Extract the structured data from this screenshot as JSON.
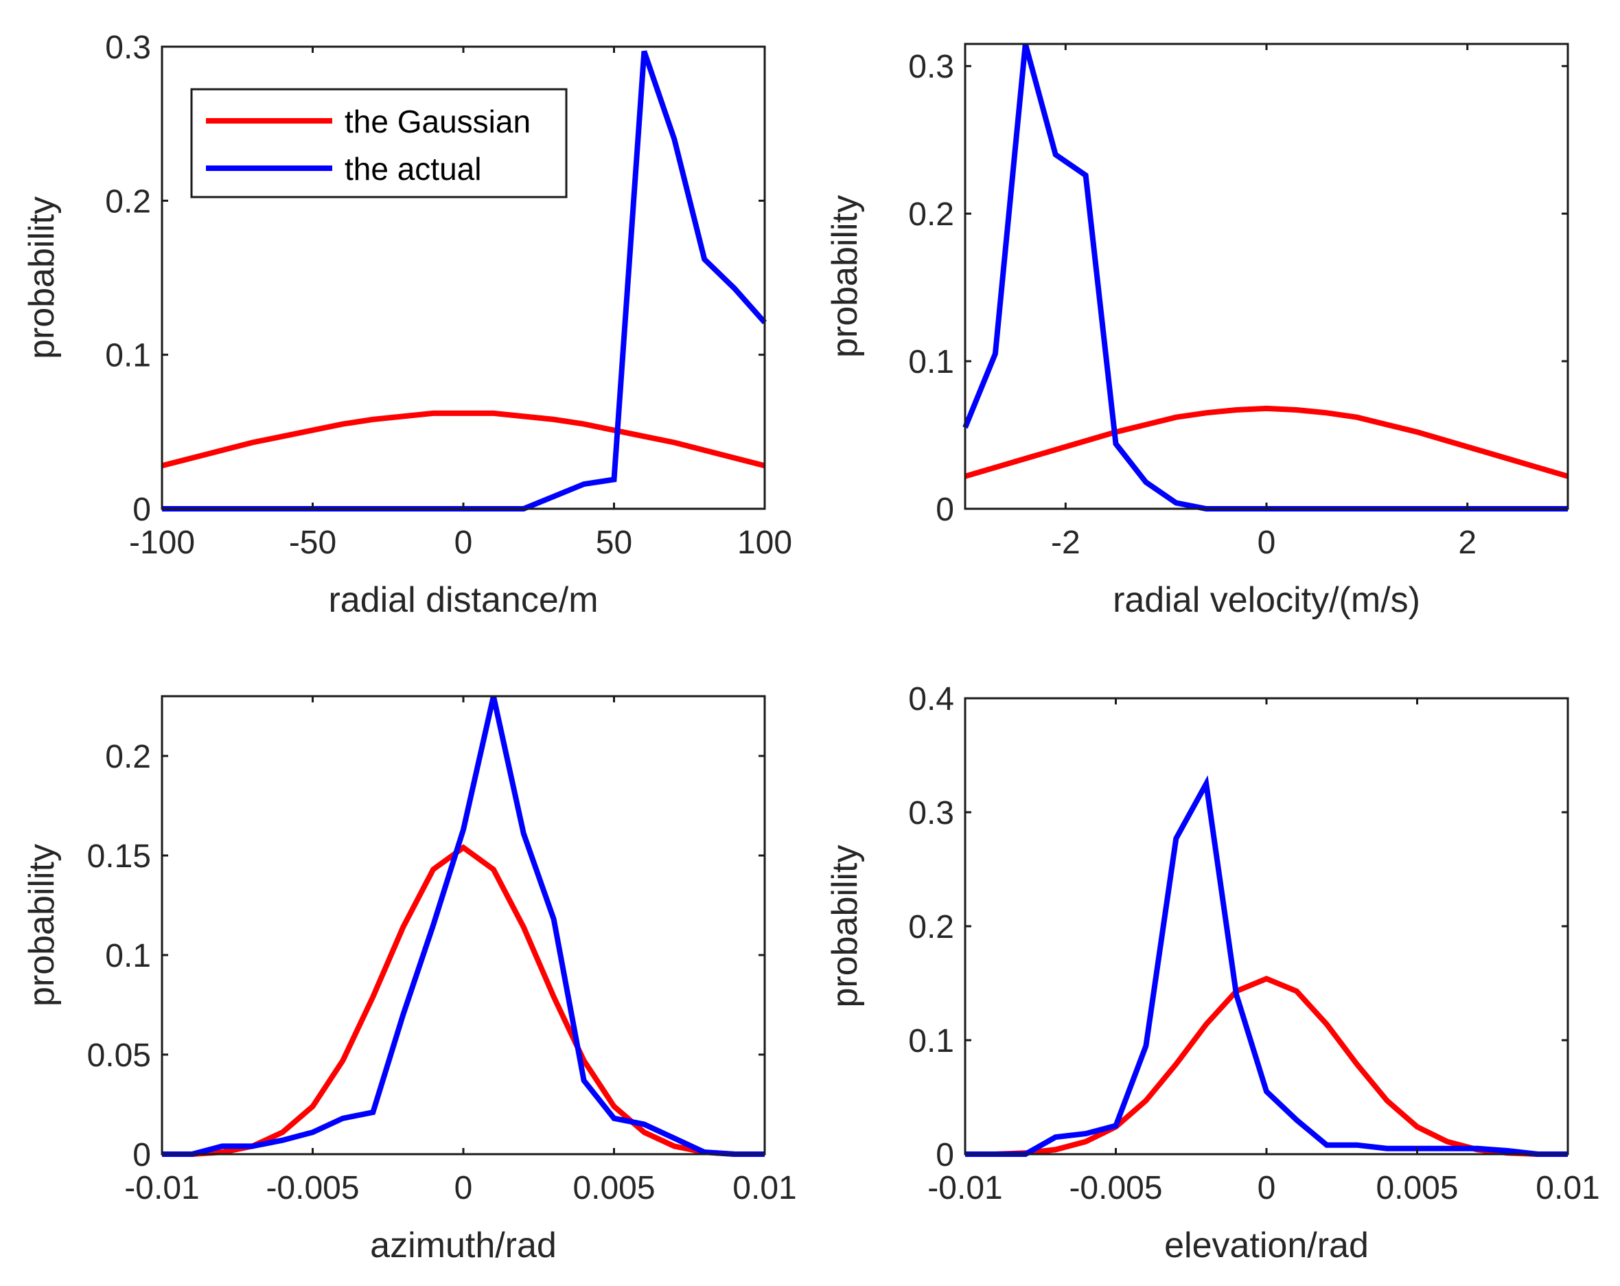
{
  "legend": {
    "entries": [
      {
        "label": "the Gaussian",
        "color": "#ff0000"
      },
      {
        "label": "the actual",
        "color": "#0000ff"
      }
    ],
    "placement": "top-left of first panel"
  },
  "chart_data": [
    {
      "type": "line",
      "xlabel": "radial distance/m",
      "ylabel": "probability",
      "xlim": [
        -100,
        100
      ],
      "ylim": [
        0,
        0.3
      ],
      "xticks": [
        -100,
        -50,
        0,
        50,
        100
      ],
      "xtick_labels": [
        "-100",
        "-50",
        "0",
        "50",
        "100"
      ],
      "yticks": [
        0,
        0.1,
        0.2,
        0.3
      ],
      "ytick_labels": [
        "0",
        "0.1",
        "0.2",
        "0.3"
      ],
      "grid": false,
      "series": [
        {
          "name": "the Gaussian",
          "color": "#ff0000",
          "x": [
            -100,
            -90,
            -80,
            -70,
            -60,
            -50,
            -40,
            -30,
            -20,
            -10,
            0,
            10,
            20,
            30,
            40,
            50,
            60,
            70,
            80,
            90,
            100
          ],
          "y": [
            0.028,
            0.033,
            0.038,
            0.043,
            0.047,
            0.051,
            0.055,
            0.058,
            0.06,
            0.062,
            0.062,
            0.062,
            0.06,
            0.058,
            0.055,
            0.051,
            0.047,
            0.043,
            0.038,
            0.033,
            0.028
          ]
        },
        {
          "name": "the actual",
          "color": "#0000ff",
          "x": [
            -100,
            -80,
            -60,
            -40,
            -20,
            0,
            20,
            30,
            40,
            50,
            60,
            70,
            80,
            90,
            100
          ],
          "y": [
            0,
            0,
            0,
            0,
            0,
            0,
            0,
            0.008,
            0.016,
            0.019,
            0.297,
            0.24,
            0.162,
            0.143,
            0.121
          ]
        }
      ]
    },
    {
      "type": "line",
      "xlabel": "radial velocity/(m/s)",
      "ylabel": "probability",
      "xlim": [
        -3,
        3
      ],
      "ylim": [
        0,
        0.315
      ],
      "xticks": [
        -2,
        0,
        2
      ],
      "xtick_labels": [
        "-2",
        "0",
        "2"
      ],
      "yticks": [
        0,
        0.1,
        0.2,
        0.3
      ],
      "ytick_labels": [
        "0",
        "0.1",
        "0.2",
        "0.3"
      ],
      "grid": false,
      "series": [
        {
          "name": "the Gaussian",
          "color": "#ff0000",
          "x": [
            -3,
            -2.7,
            -2.4,
            -2.1,
            -1.8,
            -1.5,
            -1.2,
            -0.9,
            -0.6,
            -0.3,
            0,
            0.3,
            0.6,
            0.9,
            1.2,
            1.5,
            1.8,
            2.1,
            2.4,
            2.7,
            3
          ],
          "y": [
            0.022,
            0.028,
            0.034,
            0.04,
            0.046,
            0.052,
            0.057,
            0.062,
            0.065,
            0.067,
            0.068,
            0.067,
            0.065,
            0.062,
            0.057,
            0.052,
            0.046,
            0.04,
            0.034,
            0.028,
            0.022
          ]
        },
        {
          "name": "the actual",
          "color": "#0000ff",
          "x": [
            -3,
            -2.7,
            -2.4,
            -2.1,
            -1.8,
            -1.5,
            -1.2,
            -0.9,
            -0.6,
            0,
            1,
            2,
            3
          ],
          "y": [
            0.055,
            0.105,
            0.315,
            0.24,
            0.226,
            0.044,
            0.018,
            0.004,
            0,
            0,
            0,
            0,
            0
          ]
        }
      ]
    },
    {
      "type": "line",
      "xlabel": "azimuth/rad",
      "ylabel": "probability",
      "xlim": [
        -0.01,
        0.01
      ],
      "ylim": [
        0,
        0.23
      ],
      "xticks": [
        -0.01,
        -0.005,
        0,
        0.005,
        0.01
      ],
      "xtick_labels": [
        "-0.01",
        "-0.005",
        "0",
        "0.005",
        "0.01"
      ],
      "yticks": [
        0,
        0.05,
        0.1,
        0.15,
        0.2
      ],
      "ytick_labels": [
        "0",
        "0.05",
        "0.1",
        "0.15",
        "0.2"
      ],
      "grid": false,
      "series": [
        {
          "name": "the Gaussian",
          "color": "#ff0000",
          "x": [
            -0.01,
            -0.009,
            -0.008,
            -0.007,
            -0.006,
            -0.005,
            -0.004,
            -0.003,
            -0.002,
            -0.001,
            0,
            0.001,
            0.002,
            0.003,
            0.004,
            0.005,
            0.006,
            0.007,
            0.008,
            0.009,
            0.01
          ],
          "y": [
            0,
            0,
            0.001,
            0.004,
            0.011,
            0.024,
            0.047,
            0.079,
            0.114,
            0.143,
            0.154,
            0.143,
            0.114,
            0.079,
            0.047,
            0.024,
            0.011,
            0.004,
            0.001,
            0,
            0
          ]
        },
        {
          "name": "the actual",
          "color": "#0000ff",
          "x": [
            -0.01,
            -0.009,
            -0.008,
            -0.007,
            -0.006,
            -0.005,
            -0.004,
            -0.003,
            -0.002,
            -0.001,
            0,
            0.001,
            0.002,
            0.003,
            0.004,
            0.005,
            0.006,
            0.007,
            0.008,
            0.009,
            0.01
          ],
          "y": [
            0,
            0,
            0.004,
            0.004,
            0.007,
            0.011,
            0.018,
            0.021,
            0.07,
            0.115,
            0.163,
            0.23,
            0.161,
            0.118,
            0.037,
            0.018,
            0.015,
            0.008,
            0.001,
            0,
            0
          ]
        }
      ]
    },
    {
      "type": "line",
      "xlabel": "elevation/rad",
      "ylabel": "probability",
      "xlim": [
        -0.01,
        0.01
      ],
      "ylim": [
        0,
        0.4
      ],
      "xticks": [
        -0.01,
        -0.005,
        0,
        0.005,
        0.01
      ],
      "xtick_labels": [
        "-0.01",
        "-0.005",
        "0",
        "0.005",
        "0.01"
      ],
      "yticks": [
        0,
        0.1,
        0.2,
        0.3,
        0.4
      ],
      "ytick_labels": [
        "0",
        "0.1",
        "0.2",
        "0.3",
        "0.4"
      ],
      "grid": false,
      "series": [
        {
          "name": "the Gaussian",
          "color": "#ff0000",
          "x": [
            -0.01,
            -0.009,
            -0.008,
            -0.007,
            -0.006,
            -0.005,
            -0.004,
            -0.003,
            -0.002,
            -0.001,
            0,
            0.001,
            0.002,
            0.003,
            0.004,
            0.005,
            0.006,
            0.007,
            0.008,
            0.009,
            0.01
          ],
          "y": [
            0,
            0,
            0.001,
            0.004,
            0.011,
            0.024,
            0.047,
            0.079,
            0.114,
            0.143,
            0.154,
            0.143,
            0.114,
            0.079,
            0.047,
            0.024,
            0.011,
            0.004,
            0.001,
            0,
            0
          ]
        },
        {
          "name": "the actual",
          "color": "#0000ff",
          "x": [
            -0.01,
            -0.009,
            -0.008,
            -0.007,
            -0.006,
            -0.005,
            -0.004,
            -0.003,
            -0.002,
            -0.001,
            0,
            0.001,
            0.002,
            0.003,
            0.004,
            0.005,
            0.006,
            0.007,
            0.008,
            0.009,
            0.01
          ],
          "y": [
            0,
            0,
            0,
            0.015,
            0.018,
            0.025,
            0.095,
            0.277,
            0.325,
            0.14,
            0.055,
            0.03,
            0.008,
            0.008,
            0.005,
            0.005,
            0.005,
            0.005,
            0.003,
            0,
            0
          ]
        }
      ]
    }
  ]
}
